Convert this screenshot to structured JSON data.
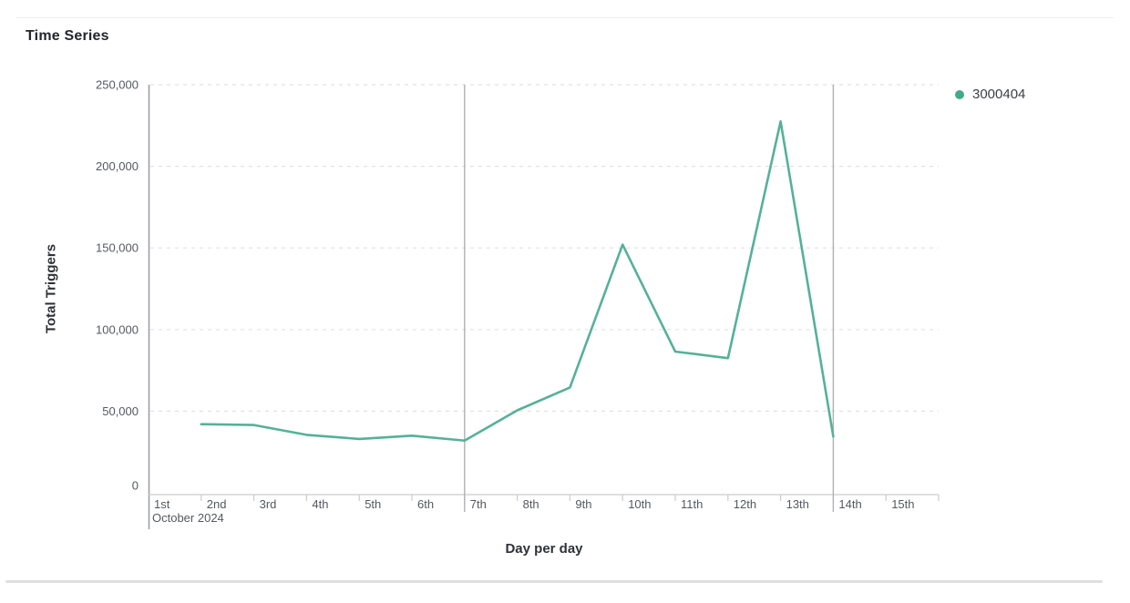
{
  "page": {
    "title": "Time Series"
  },
  "legend": {
    "label": "3000404",
    "dot_color": "#45a98b"
  },
  "chart_data": {
    "type": "line",
    "title": "Time Series",
    "xlabel": "Day per day",
    "ylabel": "Total Triggers",
    "x_axis_secondary_label": "October 2024",
    "x_tick_labels": [
      "1st",
      "2nd",
      "3rd",
      "4th",
      "5th",
      "6th",
      "7th",
      "8th",
      "9th",
      "10th",
      "11th",
      "12th",
      "13th",
      "14th",
      "15th"
    ],
    "y_ticks": [
      {
        "value": 0,
        "label": "0"
      },
      {
        "value": 50000,
        "label": "50,000"
      },
      {
        "value": 100000,
        "label": "100,000"
      },
      {
        "value": 150000,
        "label": "150,000"
      },
      {
        "value": 200000,
        "label": "200,000"
      },
      {
        "value": 250000,
        "label": "250,000"
      }
    ],
    "ylim": [
      0,
      250000
    ],
    "x_days_total": 15,
    "grid": "dashed-horizontal",
    "legend_position": "top-right",
    "vertical_marker_days": [
      7,
      14
    ],
    "series": [
      {
        "name": "3000404",
        "color": "#55b199",
        "points": [
          {
            "day": 2,
            "date_label": "2nd",
            "value": 42000
          },
          {
            "day": 3,
            "date_label": "3rd",
            "value": 41500
          },
          {
            "day": 4,
            "date_label": "4th",
            "value": 35500
          },
          {
            "day": 5,
            "date_label": "5th",
            "value": 33000
          },
          {
            "day": 6,
            "date_label": "6th",
            "value": 35000
          },
          {
            "day": 7,
            "date_label": "7th",
            "value": 32000
          },
          {
            "day": 8,
            "date_label": "8th",
            "value": 50500
          },
          {
            "day": 9,
            "date_label": "9th",
            "value": 64500
          },
          {
            "day": 10,
            "date_label": "10th",
            "value": 152000
          },
          {
            "day": 11,
            "date_label": "11th",
            "value": 86500
          },
          {
            "day": 12,
            "date_label": "12th",
            "value": 82500
          },
          {
            "day": 13,
            "date_label": "13th",
            "value": 227500
          },
          {
            "day": 14,
            "date_label": "14th",
            "value": 34500
          }
        ]
      }
    ]
  },
  "colors": {
    "gridline": "#e2e2e2",
    "axis_line": "#9aa0a6",
    "band_line": "#cccccc",
    "marker_line": "#b0b0b0"
  }
}
